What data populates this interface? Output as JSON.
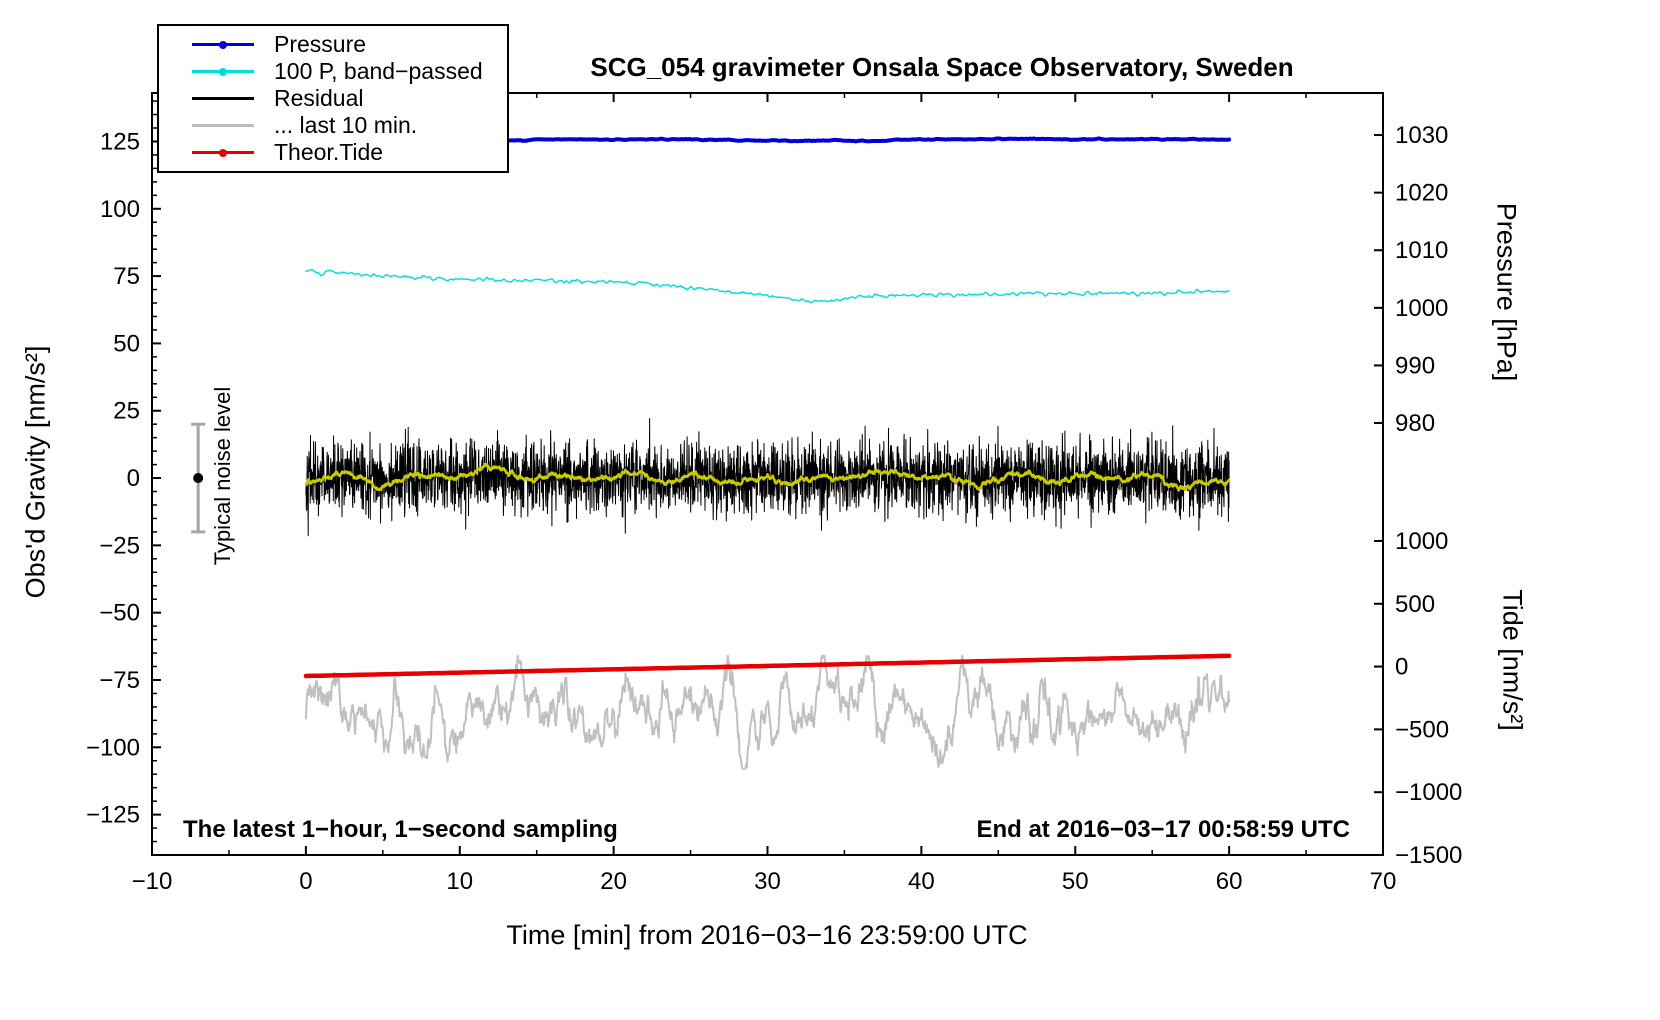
{
  "title": "SCG_054 gravimeter Onsala Space Observatory, Sweden",
  "legend": {
    "items": [
      {
        "label": "Pressure",
        "color": "#0000dd",
        "marker": true
      },
      {
        "label": "100 P, band−passed",
        "color": "#00dcdc",
        "marker": true
      },
      {
        "label": "Residual",
        "color": "#000000",
        "marker": false
      },
      {
        "label": "... last 10 min.",
        "color": "#bdbdbd",
        "marker": false
      },
      {
        "label": "Theor.Tide",
        "color": "#e60000",
        "marker": true
      }
    ]
  },
  "axes": {
    "x": {
      "label": "Time [min] from 2016−03−16 23:59:00 UTC",
      "min": -10,
      "max": 70,
      "ticks": [
        -10,
        0,
        10,
        20,
        30,
        40,
        50,
        60,
        70
      ],
      "minor_step": 5
    },
    "gravity": {
      "label": "Obs'd Gravity [nm/s²]",
      "min": -140,
      "max": 143,
      "ticks": [
        -125,
        -100,
        -75,
        -50,
        -25,
        0,
        25,
        50,
        75,
        100,
        125
      ],
      "minor_step": 5
    },
    "pressure": {
      "label": "Pressure [hPa]",
      "min": 905,
      "max": 1037.3,
      "ticks": [
        1030,
        1020,
        1010,
        1000,
        990,
        980
      ]
    },
    "tide": {
      "label": "Tide [nm/s²]",
      "min": -1500,
      "max": 4566,
      "ticks": [
        1000,
        500,
        0,
        -500,
        -1000,
        -1500
      ]
    }
  },
  "annotations": {
    "bottom_left": "The latest 1−hour, 1−second sampling",
    "bottom_right": "End at 2016−03−17 00:58:59 UTC",
    "noise_label": "Typical noise level"
  },
  "noise_marker": {
    "x": -7,
    "value": 0,
    "error": 20
  },
  "chart_data": {
    "type": "line",
    "title": "SCG_054 gravimeter Onsala Space Observatory, Sweden",
    "xlabel": "Time [min] from 2016−03−16 23:59:00 UTC",
    "x_range_min": 0,
    "x_range_max": 60,
    "legend_position": "top-left",
    "grid": false,
    "series": [
      {
        "name": "Pressure",
        "axis": "pressure",
        "color": "#0000dd",
        "width": 4,
        "n": 720,
        "points": [
          [
            0,
            1029.3
          ],
          [
            5,
            1029.3
          ],
          [
            10,
            1029.25
          ],
          [
            14,
            1029.05
          ],
          [
            16,
            1029.25
          ],
          [
            20,
            1029.2
          ],
          [
            25,
            1029.3
          ],
          [
            28,
            1029.1
          ],
          [
            31,
            1029.0
          ],
          [
            34,
            1029.1
          ],
          [
            37,
            1028.95
          ],
          [
            39,
            1029.2
          ],
          [
            45,
            1029.3
          ],
          [
            50,
            1029.3
          ],
          [
            55,
            1029.25
          ],
          [
            60,
            1029.25
          ]
        ],
        "jitter": 0.05,
        "jitter_smooth": 4
      },
      {
        "name": "100 P, band−passed",
        "axis": "gravity",
        "color": "#00dcdc",
        "width": 1.4,
        "n": 720,
        "points": [
          [
            0,
            77.0
          ],
          [
            1,
            76.2
          ],
          [
            2,
            76.5
          ],
          [
            4,
            75.2
          ],
          [
            6,
            74.8
          ],
          [
            8,
            74.3
          ],
          [
            10,
            74.0
          ],
          [
            12,
            73.6
          ],
          [
            14,
            73.2
          ],
          [
            16,
            73.3
          ],
          [
            18,
            72.8
          ],
          [
            20,
            72.9
          ],
          [
            22,
            72.2
          ],
          [
            24,
            71.3
          ],
          [
            26,
            70.3
          ],
          [
            28,
            69.0
          ],
          [
            30,
            67.6
          ],
          [
            32,
            66.2
          ],
          [
            33,
            65.2
          ],
          [
            34,
            66.0
          ],
          [
            35,
            66.8
          ],
          [
            36,
            67.3
          ],
          [
            38,
            67.9
          ],
          [
            40,
            68.2
          ],
          [
            42,
            68.1
          ],
          [
            44,
            68.3
          ],
          [
            46,
            68.4
          ],
          [
            48,
            68.3
          ],
          [
            50,
            68.5
          ],
          [
            52,
            68.5
          ],
          [
            54,
            68.7
          ],
          [
            56,
            68.8
          ],
          [
            58,
            69.4
          ],
          [
            60,
            69.2
          ]
        ],
        "jitter": 0.35,
        "jitter_smooth": 3
      },
      {
        "name": "... last 10 min.",
        "axis": "gravity",
        "color": "#c0c0c0",
        "width": 2,
        "noise": {
          "mean": -87,
          "std": 8,
          "clip": 21,
          "n": 1500,
          "seed": 7,
          "smooth": 16
        }
      },
      {
        "name": "Theor.Tide",
        "axis": "tide",
        "color": "#e60000",
        "width": 4.5,
        "n": 240,
        "points": [
          [
            0,
            -75
          ],
          [
            30,
            5
          ],
          [
            60,
            86
          ]
        ]
      },
      {
        "name": "Residual",
        "axis": "gravity",
        "color": "#000000",
        "width": 1,
        "noise": {
          "mean": 0,
          "std": 6.5,
          "clip": 27,
          "n": 3600,
          "seed": 42
        }
      },
      {
        "name": "Residual smoothed",
        "axis": "gravity",
        "color": "#c9c900",
        "width": 2.5,
        "smooth_of": "Residual",
        "window": 120,
        "gain": 3
      }
    ]
  }
}
